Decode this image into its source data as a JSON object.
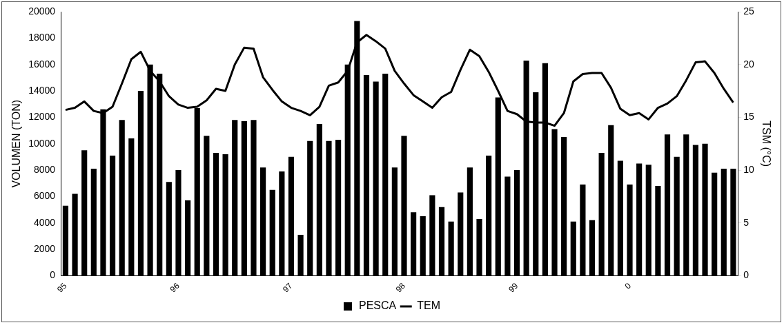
{
  "chart_data": {
    "type": "bar",
    "ylabel": "VOLUMEN (TON)",
    "y2label": "TSM (°C)",
    "categories": [
      "95",
      null,
      null,
      null,
      null,
      null,
      null,
      null,
      null,
      null,
      null,
      null,
      "96",
      null,
      null,
      null,
      null,
      null,
      null,
      null,
      null,
      null,
      null,
      null,
      "97",
      null,
      null,
      null,
      null,
      null,
      null,
      null,
      null,
      null,
      null,
      null,
      "98",
      null,
      null,
      null,
      null,
      null,
      null,
      null,
      null,
      null,
      null,
      null,
      "99",
      null,
      null,
      null,
      null,
      null,
      null,
      null,
      null,
      null,
      null,
      null,
      "0",
      null,
      null,
      null,
      null,
      null,
      null,
      null,
      null,
      null,
      null,
      null
    ],
    "series": [
      {
        "name": "PESCA",
        "color": "#000000",
        "values": [
          5300,
          6200,
          9500,
          8100,
          12600,
          9100,
          11800,
          10400,
          14000,
          16000,
          15300,
          7100,
          8000,
          5700,
          12700,
          10600,
          9300,
          9200,
          11800,
          11700,
          11800,
          8200,
          6500,
          7900,
          9000,
          3100,
          10200,
          11500,
          10200,
          10300,
          16000,
          19300,
          15200,
          14700,
          15300,
          8200,
          10600,
          4800,
          4500,
          6100,
          5200,
          4100,
          6300,
          8200,
          4300,
          9100,
          13500,
          7500,
          8000,
          16300,
          13900,
          16100,
          11100,
          10500,
          4100,
          6900,
          4200,
          9300,
          11400,
          8700,
          6900,
          8500,
          8400,
          6800,
          10700,
          9000,
          10700,
          9900,
          10000,
          7800,
          8100,
          8100
        ]
      },
      {
        "name": "TEM",
        "type": "line",
        "axis": "y2",
        "color": "#000000",
        "values": [
          15.7,
          15.9,
          16.5,
          15.6,
          15.4,
          16.0,
          18.2,
          20.5,
          21.2,
          19.4,
          18.4,
          17.0,
          16.2,
          15.9,
          16.0,
          16.6,
          17.7,
          17.5,
          20.0,
          21.6,
          21.5,
          18.8,
          17.6,
          16.5,
          15.9,
          15.6,
          15.2,
          16.0,
          18.0,
          18.3,
          19.4,
          22.1,
          22.8,
          22.2,
          21.5,
          19.4,
          18.2,
          17.1,
          16.5,
          15.9,
          16.9,
          17.4,
          19.5,
          21.4,
          20.8,
          19.3,
          17.5,
          15.6,
          15.3,
          14.6,
          14.5,
          14.5,
          14.2,
          15.4,
          18.4,
          19.1,
          19.2,
          19.2,
          17.8,
          15.8,
          15.2,
          15.4,
          14.8,
          15.9,
          16.3,
          17.0,
          18.5,
          20.2,
          20.3,
          19.2,
          17.7,
          16.4
        ]
      }
    ],
    "ylim": [
      0,
      20000
    ],
    "yticks": [
      0,
      2000,
      4000,
      6000,
      8000,
      10000,
      12000,
      14000,
      16000,
      18000,
      20000
    ],
    "y2lim": [
      0,
      25
    ],
    "y2ticks": [
      0,
      5,
      10,
      15,
      20,
      25
    ],
    "grid": false,
    "legend": "bottom",
    "marker": "none",
    "line_style": "solid"
  }
}
